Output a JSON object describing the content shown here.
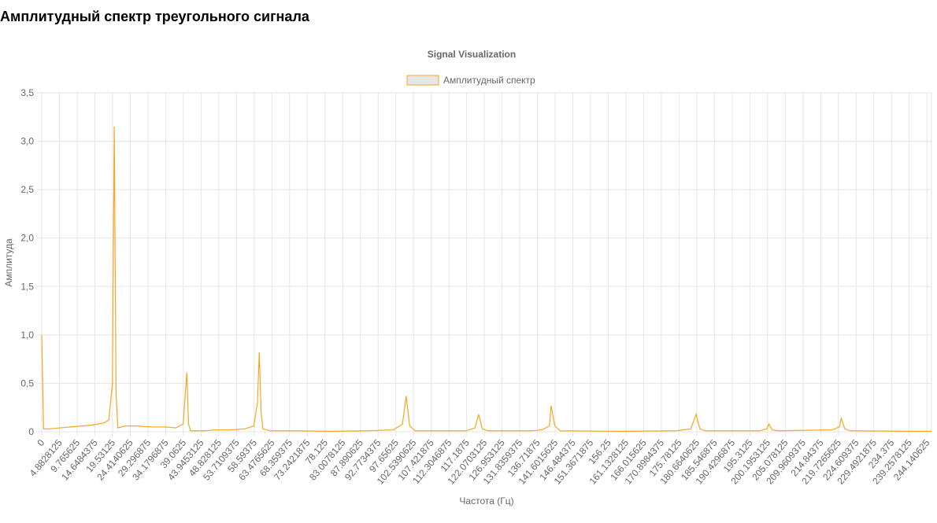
{
  "header": {
    "title": "Амплитудный спектр треугольного сигнала"
  },
  "chart_data": {
    "type": "line",
    "title": "Signal Visualization",
    "x_label": "Частота (Гц)",
    "y_label": "Амплитуда",
    "grid": true,
    "legend": "top",
    "x": [
      0,
      0.5,
      2,
      5,
      8,
      11,
      14,
      17,
      18.5,
      19.5,
      20,
      20.5,
      21,
      23,
      26,
      30,
      34,
      37,
      39,
      40,
      40.5,
      41,
      45,
      48,
      52,
      56,
      58.5,
      59.5,
      60,
      60.5,
      61,
      63,
      70,
      80,
      90,
      97,
      99.5,
      100.5,
      101.5,
      103,
      110,
      117,
      119.5,
      120.5,
      121.5,
      123,
      135,
      138,
      140,
      140.5,
      141.5,
      143,
      160,
      175,
      179,
      180.5,
      181.5,
      183,
      198,
      200,
      200.5,
      201.5,
      203,
      218,
      220,
      220.5,
      221.5,
      223,
      240,
      245.4
    ],
    "series": [
      {
        "name": "Амплитудный спектр",
        "color": "#f5a623",
        "values": [
          1.0,
          0.03,
          0.03,
          0.04,
          0.05,
          0.06,
          0.07,
          0.09,
          0.12,
          0.5,
          3.15,
          0.4,
          0.04,
          0.06,
          0.06,
          0.05,
          0.05,
          0.04,
          0.08,
          0.61,
          0.08,
          0.01,
          0.01,
          0.02,
          0.02,
          0.03,
          0.06,
          0.3,
          0.82,
          0.2,
          0.03,
          0.01,
          0.01,
          0.005,
          0.01,
          0.02,
          0.08,
          0.37,
          0.06,
          0.01,
          0.01,
          0.01,
          0.04,
          0.18,
          0.03,
          0.01,
          0.01,
          0.02,
          0.06,
          0.27,
          0.06,
          0.01,
          0.005,
          0.01,
          0.03,
          0.18,
          0.03,
          0.01,
          0.01,
          0.03,
          0.08,
          0.02,
          0.01,
          0.02,
          0.05,
          0.14,
          0.03,
          0.01,
          0.005,
          0.005
        ]
      }
    ],
    "xlim": [
      0,
      245.4
    ],
    "xticks": [
      0,
      4.8828125,
      9.765625,
      14.6484375,
      19.53125,
      24.4140625,
      29.296875,
      34.1796875,
      39.0625,
      43.9453125,
      48.828125,
      53.7109375,
      58.59375,
      63.4765625,
      68.359375,
      73.2421875,
      78.125,
      83.0078125,
      87.890625,
      92.7734375,
      97.65625,
      102.5390625,
      107.421875,
      112.3046875,
      117.1875,
      122.0703125,
      126.953125,
      131.8359375,
      136.71875,
      141.6015625,
      146.484375,
      151.3671875,
      156.25,
      161.1328125,
      166.015625,
      170.8984375,
      175.78125,
      180.6640625,
      185.546875,
      190.4296875,
      195.3125,
      200.1953125,
      205.078125,
      209.9609375,
      214.84375,
      219.7265625,
      224.609375,
      229.4921875,
      234.375,
      239.2578125,
      244.140625
    ],
    "ylim": [
      0,
      3.5
    ],
    "yticks": [
      0,
      {
        "value": 0.5,
        "label": "0,5"
      },
      {
        "value": 1,
        "label": "1,0"
      },
      {
        "value": 1.5,
        "label": "1,5"
      },
      {
        "value": 2,
        "label": "2,0"
      },
      {
        "value": 2.5,
        "label": "2,5"
      },
      {
        "value": 3,
        "label": "3,0"
      },
      {
        "value": 3.5,
        "label": "3,5"
      }
    ]
  }
}
